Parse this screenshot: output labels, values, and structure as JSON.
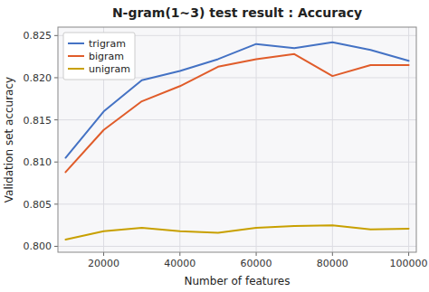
{
  "chart_data": {
    "type": "line",
    "title": "N-gram(1∼3) test result : Accuracy",
    "xlabel": "Number of features",
    "ylabel": "Validation set accuracy",
    "x": [
      10000,
      20000,
      30000,
      40000,
      50000,
      60000,
      70000,
      80000,
      90000,
      100000
    ],
    "series": [
      {
        "name": "trigram",
        "color": "#4472C4",
        "values": [
          0.8105,
          0.816,
          0.8197,
          0.8208,
          0.8222,
          0.824,
          0.8235,
          0.8242,
          0.8233,
          0.822
        ]
      },
      {
        "name": "bigram",
        "color": "#E05C2A",
        "values": [
          0.8088,
          0.8138,
          0.8172,
          0.819,
          0.8213,
          0.8222,
          0.8228,
          0.8202,
          0.8215,
          0.8215
        ]
      },
      {
        "name": "unigram",
        "color": "#C8A000",
        "values": [
          0.8008,
          0.8018,
          0.8022,
          0.8018,
          0.8016,
          0.8022,
          0.8024,
          0.8025,
          0.802,
          0.8021
        ]
      }
    ],
    "xlim": [
      8000,
      102000
    ],
    "xticks": [
      20000,
      40000,
      60000,
      80000,
      100000
    ],
    "ylim": [
      0.7993,
      0.826
    ],
    "yticks": [
      {
        "value": 0.8,
        "label": "0.800"
      },
      0.805,
      {
        "value": 0.81,
        "label": "0.810"
      },
      0.815,
      {
        "value": 0.82,
        "label": "0.820"
      },
      0.825
    ],
    "grid": true,
    "legend": "upper left"
  }
}
